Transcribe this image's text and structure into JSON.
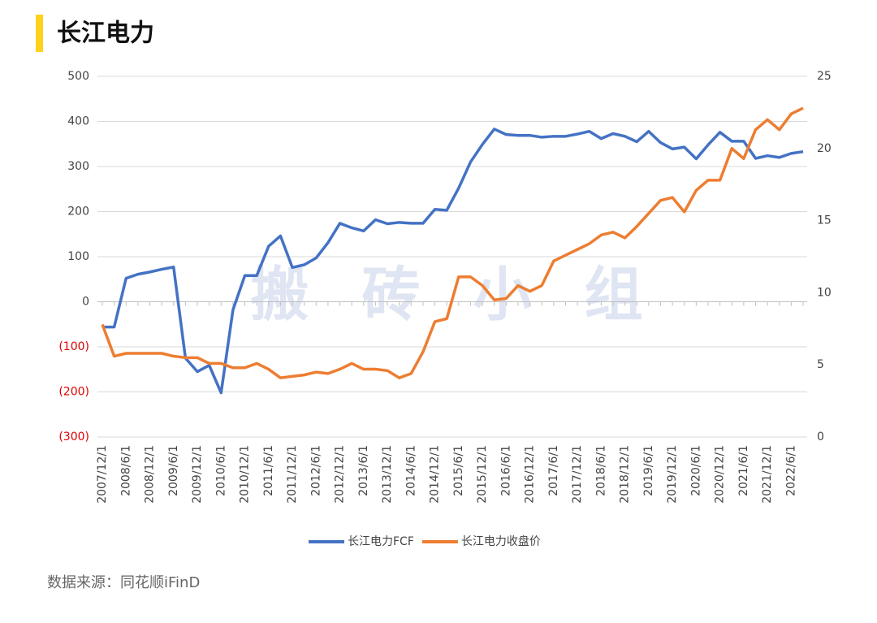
{
  "chart_data": {
    "type": "line",
    "title": "长江电力",
    "watermark": "搬 砖 小 组",
    "source": "数据来源：同花顺iFinD",
    "categories": [
      "2007/12/1",
      null,
      "2008/6/1",
      null,
      "2008/12/1",
      null,
      "2009/6/1",
      null,
      "2009/12/1",
      null,
      "2010/6/1",
      null,
      "2010/12/1",
      null,
      "2011/6/1",
      null,
      "2011/12/1",
      null,
      "2012/6/1",
      null,
      "2012/12/1",
      null,
      "2013/6/1",
      null,
      "2013/12/1",
      null,
      "2014/6/1",
      null,
      "2014/12/1",
      null,
      "2015/6/1",
      null,
      "2015/12/1",
      null,
      "2016/6/1",
      null,
      "2016/12/1",
      null,
      "2017/6/1",
      null,
      "2017/12/1",
      null,
      "2018/6/1",
      null,
      "2018/12/1",
      null,
      "2019/6/1",
      null,
      "2019/12/1",
      null,
      "2020/6/1",
      null,
      "2020/12/1",
      null,
      "2021/6/1",
      null,
      "2021/12/1",
      null,
      "2022/6/1",
      null
    ],
    "series": [
      {
        "name": "长江电力FCF",
        "color": "#4472c4",
        "axis": "y",
        "values": [
          -56,
          -56,
          52,
          61,
          66,
          72,
          77,
          -125,
          -155,
          -141,
          -202,
          -18,
          58,
          58,
          123,
          146,
          76,
          82,
          97,
          131,
          174,
          164,
          157,
          182,
          173,
          176,
          174,
          174,
          205,
          203,
          252,
          310,
          349,
          383,
          371,
          369,
          369,
          365,
          367,
          367,
          372,
          378,
          362,
          373,
          367,
          355,
          378,
          353,
          339,
          343,
          317,
          348,
          376,
          356,
          356,
          318,
          324,
          320,
          329,
          333
        ]
      },
      {
        "name": "长江电力收盘价",
        "color": "#ed7d31",
        "axis": "y2",
        "values": [
          7.8,
          5.6,
          5.8,
          5.8,
          5.8,
          5.8,
          5.6,
          5.5,
          5.5,
          5.1,
          5.1,
          4.8,
          4.8,
          5.1,
          4.7,
          4.1,
          4.2,
          4.3,
          4.5,
          4.4,
          4.7,
          5.1,
          4.7,
          4.7,
          4.6,
          4.1,
          4.4,
          5.9,
          8.0,
          8.2,
          11.1,
          11.1,
          10.5,
          9.5,
          9.6,
          10.5,
          10.1,
          10.5,
          12.2,
          12.6,
          13.0,
          13.4,
          14.0,
          14.2,
          13.8,
          14.6,
          15.5,
          16.4,
          16.6,
          15.6,
          17.1,
          17.8,
          17.8,
          20.0,
          19.3,
          21.3,
          22.0,
          21.3,
          22.4,
          22.8
        ]
      }
    ],
    "ylim": [
      -300,
      500
    ],
    "yticks": [
      {
        "value": -300,
        "label": "(300)"
      },
      {
        "value": -200,
        "label": "(200)"
      },
      {
        "value": -100,
        "label": "(100)"
      },
      0,
      100,
      200,
      300,
      400,
      500
    ],
    "y2lim": [
      0,
      25
    ],
    "y2ticks": [
      0,
      5,
      10,
      15,
      20,
      25
    ],
    "negative_tick_color": "#e00000",
    "grid": true,
    "legend": "bottom"
  }
}
